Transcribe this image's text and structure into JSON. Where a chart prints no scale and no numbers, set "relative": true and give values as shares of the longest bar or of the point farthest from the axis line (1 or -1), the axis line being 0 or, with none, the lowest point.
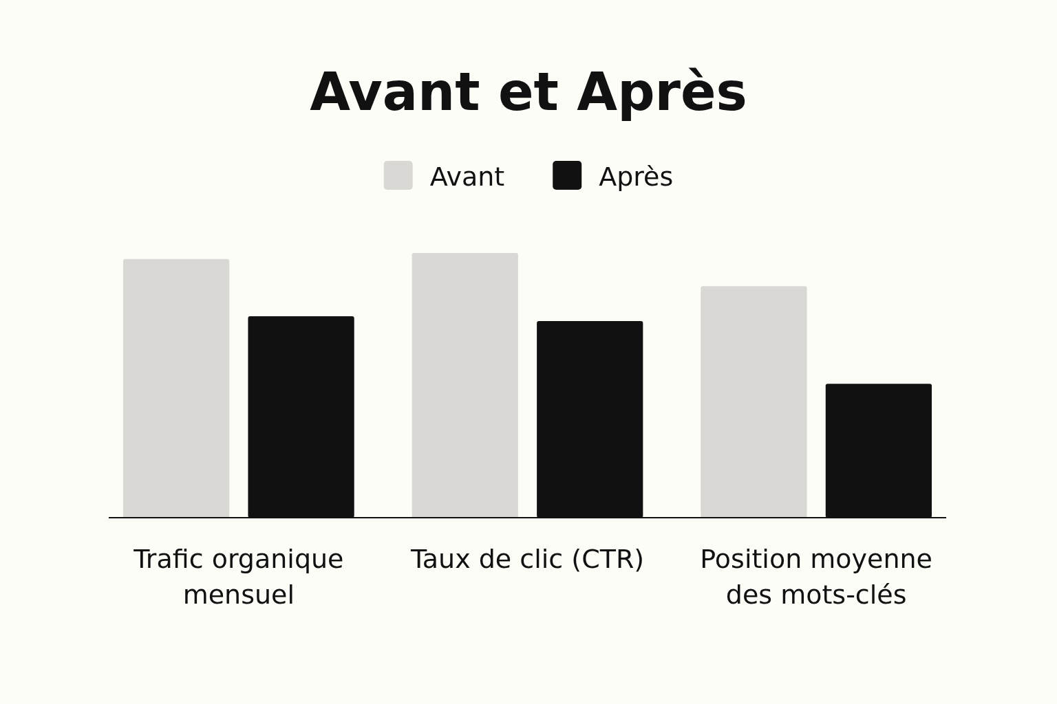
{
  "chart_data": {
    "type": "bar",
    "title": "Avant et Après",
    "categories": [
      "Trafic organique mensuel",
      "Taux de clic (CTR)",
      "Position moyenne des mots-clés"
    ],
    "relative": true,
    "legend": "top",
    "grid": false,
    "series": [
      {
        "name": "Avant",
        "color": "#d9d8d4",
        "values": [
          0.977,
          1,
          0.875
        ]
      },
      {
        "name": "Après",
        "color": "#111111",
        "values": [
          0.761,
          0.743,
          0.506
        ]
      }
    ]
  }
}
